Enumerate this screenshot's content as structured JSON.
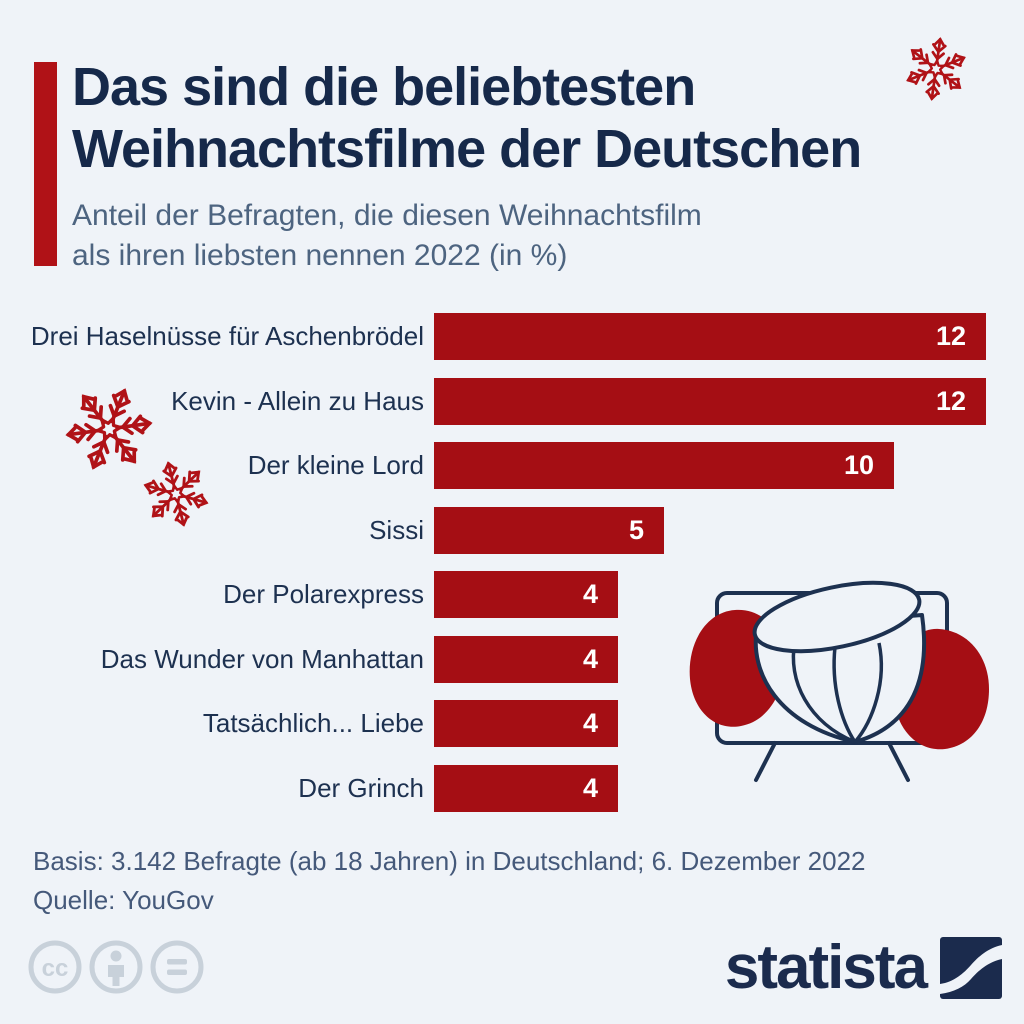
{
  "page": {
    "background_color": "#eff3f8"
  },
  "header": {
    "title_line1": "Das sind die beliebtesten",
    "title_line2": "Weihnachtsfilme der Deutschen",
    "subtitle_line1": "Anteil der Befragten, die diesen Weihnachtsfilm",
    "subtitle_line2": "als ihren liebsten nennen 2022 (in %)",
    "accent_color": "#b01217",
    "title_color": "#16294a",
    "subtitle_color": "#4d6480"
  },
  "chart_data": {
    "type": "bar",
    "orientation": "horizontal",
    "title": "Das sind die beliebtesten Weihnachtsfilme der Deutschen",
    "subtitle": "Anteil der Befragten, die diesen Weihnachtsfilm als ihren liebsten nennen 2022 (in %)",
    "unit": "%",
    "categories": [
      "Drei Haselnüsse für Aschenbrödel",
      "Kevin - Allein zu Haus",
      "Der kleine Lord",
      "Sissi",
      "Der Polarexpress",
      "Das Wunder von Manhattan",
      "Tatsächlich... Liebe",
      "Der Grinch"
    ],
    "values": [
      12,
      12,
      10,
      5,
      4,
      4,
      4,
      4
    ],
    "value_labels": [
      "12",
      "12",
      "10",
      "5",
      "4",
      "4",
      "4",
      "4"
    ],
    "xlim": [
      0,
      12
    ],
    "grid": false,
    "legend": false,
    "bar_color": "#a50e14",
    "value_label_color": "#ffffff",
    "category_label_color": "#1d3150"
  },
  "footer": {
    "basis": "Basis: 3.142 Befragte (ab 18 Jahren) in Deutschland; 6. Dezember 2022",
    "source": "Quelle: YouGov"
  },
  "branding": {
    "wordmark": "statista",
    "logo_color": "#1b2b4d"
  },
  "license": {
    "icons": [
      "cc",
      "attribution",
      "equals"
    ],
    "icon_color": "#c8d1da"
  },
  "decor": {
    "snowflake_color": "#b01217",
    "illustration": "tv-with-hazelnut",
    "illustration_outline_color": "#1d3150",
    "illustration_blob_color": "#a50e14"
  }
}
